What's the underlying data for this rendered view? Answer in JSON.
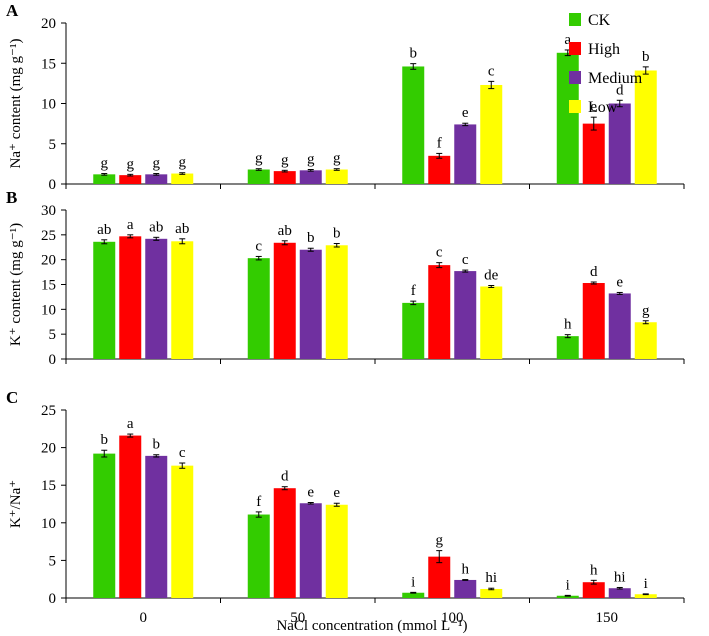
{
  "chart_data": {
    "type": "bar",
    "categories": [
      "0",
      "50",
      "100",
      "150"
    ],
    "xlabel": "NaCl concentration (mmol L⁻¹)",
    "legend": {
      "position": "top-right",
      "entries": [
        {
          "name": "CK",
          "color": "#33cc00"
        },
        {
          "name": "High",
          "color": "#ff0000"
        },
        {
          "name": "Medium",
          "color": "#7030a0"
        },
        {
          "name": "Low",
          "color": "#ffff00"
        }
      ]
    },
    "panels": [
      {
        "letter": "A",
        "ylabel": "Na⁺ content (mg g⁻¹)",
        "ylim": [
          0,
          20
        ],
        "yticks": [
          0,
          5,
          10,
          15,
          20
        ],
        "series": [
          {
            "name": "CK",
            "values": [
              1.2,
              1.8,
              14.6,
              16.3
            ],
            "errors": [
              0.1,
              0.1,
              0.35,
              0.35
            ],
            "letters": [
              "g",
              "g",
              "b",
              "a"
            ]
          },
          {
            "name": "High",
            "values": [
              1.1,
              1.6,
              3.5,
              7.5
            ],
            "errors": [
              0.1,
              0.1,
              0.3,
              0.8
            ],
            "letters": [
              "g",
              "g",
              "f",
              "e"
            ]
          },
          {
            "name": "Medium",
            "values": [
              1.2,
              1.7,
              7.4,
              10.0
            ],
            "errors": [
              0.1,
              0.1,
              0.15,
              0.4
            ],
            "letters": [
              "g",
              "g",
              "e",
              "d"
            ]
          },
          {
            "name": "Low",
            "values": [
              1.3,
              1.8,
              12.3,
              14.1
            ],
            "errors": [
              0.1,
              0.1,
              0.45,
              0.45
            ],
            "letters": [
              "g",
              "g",
              "c",
              "b"
            ]
          }
        ]
      },
      {
        "letter": "B",
        "ylabel": "K⁺ content (mg g⁻¹)",
        "ylim": [
          0,
          30
        ],
        "yticks": [
          0,
          5,
          10,
          15,
          20,
          25,
          30
        ],
        "series": [
          {
            "name": "CK",
            "values": [
              23.6,
              20.3,
              11.3,
              4.6
            ],
            "errors": [
              0.4,
              0.35,
              0.35,
              0.3
            ],
            "letters": [
              "ab",
              "c",
              "f",
              "h"
            ]
          },
          {
            "name": "High",
            "values": [
              24.7,
              23.4,
              18.9,
              15.3
            ],
            "errors": [
              0.3,
              0.4,
              0.5,
              0.2
            ],
            "letters": [
              "a",
              "ab",
              "c",
              "d"
            ]
          },
          {
            "name": "Medium",
            "values": [
              24.2,
              22.0,
              17.7,
              13.2
            ],
            "errors": [
              0.3,
              0.3,
              0.2,
              0.2
            ],
            "letters": [
              "ab",
              "b",
              "c",
              "e"
            ]
          },
          {
            "name": "Low",
            "values": [
              23.7,
              22.9,
              14.6,
              7.4
            ],
            "errors": [
              0.5,
              0.35,
              0.2,
              0.3
            ],
            "letters": [
              "ab",
              "b",
              "de",
              "g"
            ]
          }
        ]
      },
      {
        "letter": "C",
        "ylabel": "K⁺/Na⁺",
        "ylim": [
          0,
          25
        ],
        "yticks": [
          0,
          5,
          10,
          15,
          20,
          25
        ],
        "series": [
          {
            "name": "CK",
            "values": [
              19.2,
              11.1,
              0.7,
              0.3
            ],
            "errors": [
              0.45,
              0.35,
              0.05,
              0.05
            ],
            "letters": [
              "b",
              "f",
              "i",
              "i"
            ]
          },
          {
            "name": "High",
            "values": [
              21.6,
              14.6,
              5.5,
              2.1
            ],
            "errors": [
              0.2,
              0.2,
              0.8,
              0.25
            ],
            "letters": [
              "a",
              "d",
              "g",
              "h"
            ]
          },
          {
            "name": "Medium",
            "values": [
              18.9,
              12.6,
              2.4,
              1.3
            ],
            "errors": [
              0.15,
              0.1,
              0.05,
              0.1
            ],
            "letters": [
              "b",
              "e",
              "h",
              "hi"
            ]
          },
          {
            "name": "Low",
            "values": [
              17.6,
              12.4,
              1.2,
              0.5
            ],
            "errors": [
              0.35,
              0.2,
              0.1,
              0.05
            ],
            "letters": [
              "c",
              "e",
              "hi",
              "i"
            ]
          }
        ]
      }
    ]
  }
}
